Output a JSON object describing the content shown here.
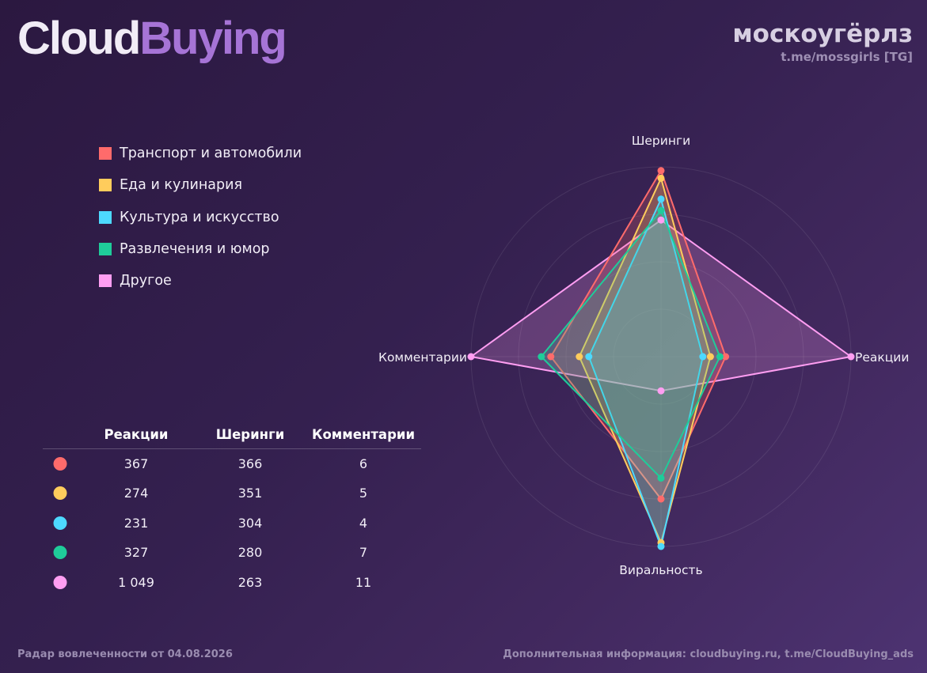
{
  "brand": {
    "part1": "Cloud",
    "part2": "Buying"
  },
  "channel": {
    "name": "москоугёрлз",
    "link": "t.me/mossgirls [TG]"
  },
  "footer": {
    "left": "Радар вовлеченности от 04.08.2026",
    "right": "Дополнительная информация: cloudbuying.ru, t.me/CloudBuying_ads"
  },
  "stats_table": {
    "headers": [
      "Реакции",
      "Шеринги",
      "Комментарии"
    ],
    "rows": [
      {
        "values": [
          "367",
          "366",
          "6"
        ],
        "color": "#ff6b6b"
      },
      {
        "values": [
          "274",
          "351",
          "5"
        ],
        "color": "#ffcc5c"
      },
      {
        "values": [
          "231",
          "304",
          "4"
        ],
        "color": "#4dd9ff"
      },
      {
        "values": [
          "327",
          "280",
          "7"
        ],
        "color": "#1fcc9a"
      },
      {
        "values": [
          "1 049",
          "263",
          "11"
        ],
        "color": "#ff9ef2"
      }
    ]
  },
  "chart_data": {
    "type": "radar",
    "axes": [
      "Шеринги",
      "Реакции",
      "Виральность",
      "Комментарии"
    ],
    "grid": true,
    "legend_position": "top-left",
    "series": [
      {
        "name": "Транспорт и автомобили",
        "color": "#ff6b6b",
        "values": [
          0.98,
          0.34,
          0.75,
          0.58
        ]
      },
      {
        "name": "Еда и кулинария",
        "color": "#ffcc5c",
        "values": [
          0.94,
          0.26,
          0.98,
          0.43
        ]
      },
      {
        "name": "Культура и искусство",
        "color": "#4dd9ff",
        "values": [
          0.83,
          0.22,
          1.0,
          0.38
        ]
      },
      {
        "name": "Развлечения и юмор",
        "color": "#1fcc9a",
        "values": [
          0.77,
          0.31,
          0.64,
          0.63
        ]
      },
      {
        "name": "Другое",
        "color": "#ff9ef2",
        "values": [
          0.72,
          1.0,
          0.18,
          1.0
        ]
      }
    ]
  }
}
